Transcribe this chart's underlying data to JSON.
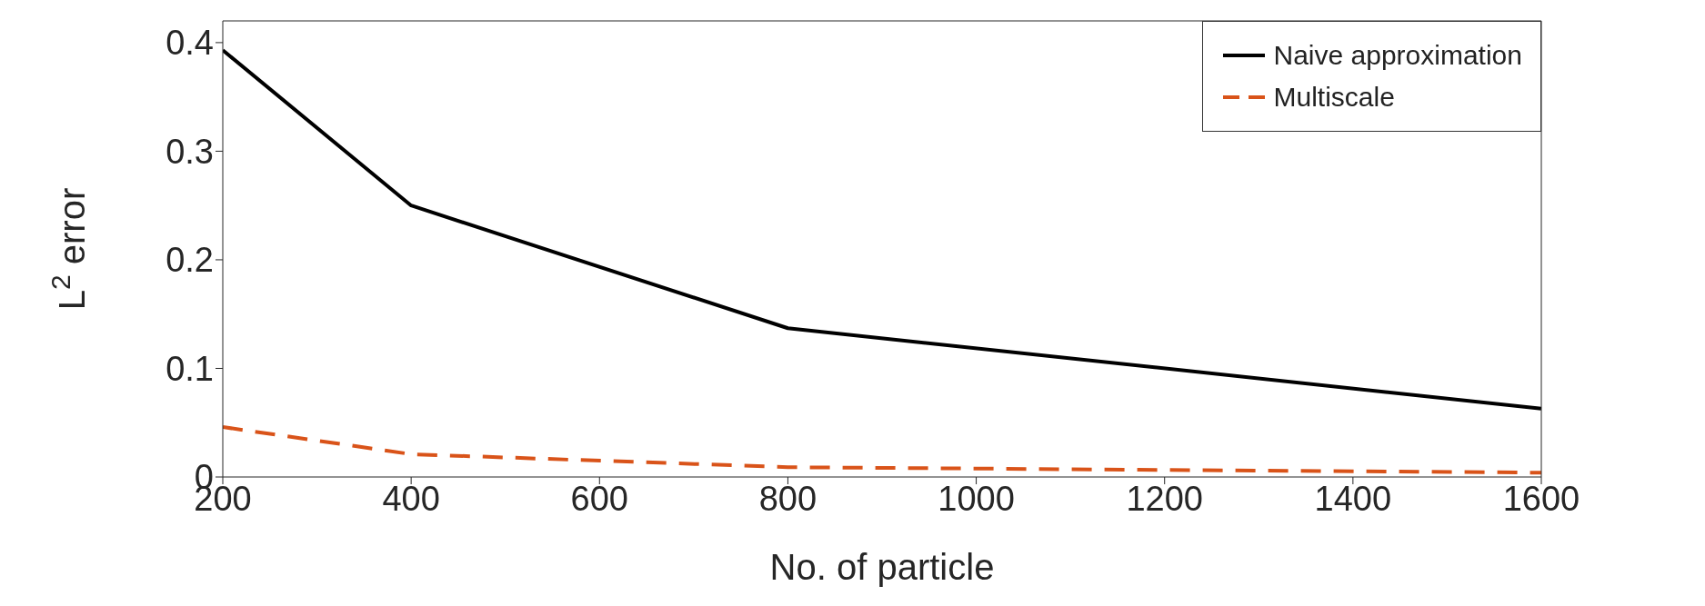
{
  "chart_data": {
    "type": "line",
    "xlabel": "No. of particle",
    "ylabel": "L$^{2}$ error",
    "x": [
      200,
      400,
      800,
      1600
    ],
    "series": [
      {
        "name": "Naive approximation",
        "color": "#000000",
        "line_style": "solid",
        "values": [
          0.393,
          0.25,
          0.137,
          0.063
        ]
      },
      {
        "name": "Multiscale",
        "color": "#d95319",
        "line_style": "dashed",
        "values": [
          0.046,
          0.021,
          0.009,
          0.004
        ]
      }
    ],
    "xlim": [
      200,
      1600
    ],
    "xticks": [
      200,
      400,
      600,
      800,
      1000,
      1200,
      1400,
      1600
    ],
    "ylim": [
      0,
      0.42
    ],
    "yticks": [
      0,
      0.1,
      0.2,
      0.3,
      0.4
    ],
    "legend": "top right",
    "marker": "none",
    "grid": false
  }
}
